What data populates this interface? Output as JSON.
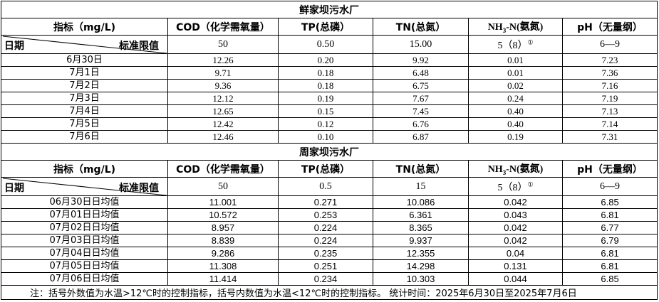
{
  "columns": {
    "indicator": "指标（mg/L)",
    "cod": "COD（化学需氧量）",
    "tp": "TP(总磷）",
    "tn": "TN(总氮）",
    "nh3_main": "NH",
    "nh3_sub": "3",
    "nh3_rest": "-N(氨氮)",
    "ph": "pH（无量纲）"
  },
  "diag": {
    "left": "日期",
    "right": "标准限值"
  },
  "plant1": {
    "title": "鲜家坝污水厂",
    "standards": {
      "cod": "50",
      "tp": "0.50",
      "tn": "15.00",
      "nh3": "5（8）",
      "nh3_note": "①",
      "ph": "6—9"
    },
    "rows": [
      {
        "date": "6月30日",
        "cod": "12.26",
        "tp": "0.20",
        "tn": "9.92",
        "nh3": "0.01",
        "ph": "7.23"
      },
      {
        "date": "7月1日",
        "cod": "9.71",
        "tp": "0.18",
        "tn": "6.48",
        "nh3": "0.01",
        "ph": "7.36"
      },
      {
        "date": "7月2日",
        "cod": "9.36",
        "tp": "0.18",
        "tn": "6.75",
        "nh3": "0.02",
        "ph": "7.16"
      },
      {
        "date": "7月3日",
        "cod": "12.12",
        "tp": "0.19",
        "tn": "7.67",
        "nh3": "0.24",
        "ph": "7.19"
      },
      {
        "date": "7月4日",
        "cod": "12.65",
        "tp": "0.15",
        "tn": "7.45",
        "nh3": "0.40",
        "ph": "7.13"
      },
      {
        "date": "7月5日",
        "cod": "12.42",
        "tp": "0.12",
        "tn": "6.76",
        "nh3": "0.40",
        "ph": "7.14"
      },
      {
        "date": "7月6日",
        "cod": "12.46",
        "tp": "0.10",
        "tn": "6.87",
        "nh3": "0.19",
        "ph": "7.31"
      }
    ]
  },
  "plant2": {
    "title": "周家坝污水厂",
    "standards": {
      "cod": "50",
      "tp": "0.5",
      "tn": "15",
      "nh3": "5（8）",
      "nh3_note": "①",
      "ph": "6—9"
    },
    "rows": [
      {
        "date": "06月30日日均值",
        "cod": "11.001",
        "tp": "0.271",
        "tn": "10.086",
        "nh3": "0.042",
        "ph": "6.85"
      },
      {
        "date": "07月01日日均值",
        "cod": "10.572",
        "tp": "0.253",
        "tn": "6.361",
        "nh3": "0.043",
        "ph": "6.81"
      },
      {
        "date": "07月02日日均值",
        "cod": "8.957",
        "tp": "0.224",
        "tn": "8.365",
        "nh3": "0.042",
        "ph": "6.77"
      },
      {
        "date": "07月03日日均值",
        "cod": "8.839",
        "tp": "0.224",
        "tn": "9.937",
        "nh3": "0.042",
        "ph": "6.79"
      },
      {
        "date": "07月04日日均值",
        "cod": "9.286",
        "tp": "0.235",
        "tn": "12.355",
        "nh3": "0.04",
        "ph": "6.81"
      },
      {
        "date": "07月05日日均值",
        "cod": "11.308",
        "tp": "0.251",
        "tn": "14.298",
        "nh3": "0.131",
        "ph": "6.81"
      },
      {
        "date": "07月06日日均值",
        "cod": "11.414",
        "tp": "0.234",
        "tn": "10.303",
        "nh3": "0.044",
        "ph": "6.85"
      }
    ]
  },
  "note": "注：括号外数值为水温>12℃时的控制指标，括号内数值为水温<12℃时的控制指标。   统计时间：2025年6月30日至2025年7月6日"
}
